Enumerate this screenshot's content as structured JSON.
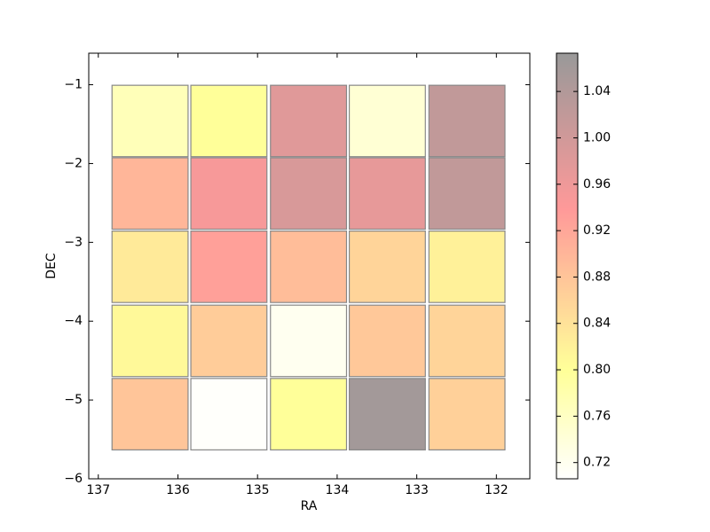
{
  "chart_data": {
    "type": "heatmap",
    "xlabel": "RA",
    "ylabel": "DEC",
    "x": [
      136.35,
      135.36,
      134.36,
      133.37,
      132.37
    ],
    "y": [
      -1.46,
      -2.38,
      -3.31,
      -4.25,
      -5.18
    ],
    "z": [
      [
        0.77,
        0.8,
        0.98,
        0.745,
        1.02
      ],
      [
        0.9,
        0.95,
        0.99,
        0.97,
        1.02
      ],
      [
        0.83,
        0.93,
        0.89,
        0.86,
        0.82
      ],
      [
        0.81,
        0.87,
        0.72,
        0.875,
        0.86
      ],
      [
        0.88,
        0.71,
        0.8,
        1.06,
        0.865
      ]
    ],
    "xlim": [
      137.12,
      131.58
    ],
    "ylim": [
      -6,
      -0.6
    ],
    "xticks": [
      137,
      136,
      135,
      134,
      133,
      132
    ],
    "yticks": [
      {
        "value": -1,
        "label": "−1"
      },
      {
        "value": -2,
        "label": "−2"
      },
      {
        "value": -3,
        "label": "−3"
      },
      {
        "value": -4,
        "label": "−4"
      },
      {
        "value": -5,
        "label": "−5"
      },
      {
        "value": -6,
        "label": "−6"
      }
    ],
    "colormap": "hot_r",
    "alpha": 0.4,
    "colorbar": {
      "clim": [
        0.706,
        1.073
      ],
      "ticks": [
        0.72,
        0.76,
        {
          "value": 0.8,
          "label": "0.80"
        },
        0.84,
        0.88,
        0.92,
        0.96,
        {
          "value": 1,
          "label": "1.00"
        },
        1.04
      ]
    }
  }
}
